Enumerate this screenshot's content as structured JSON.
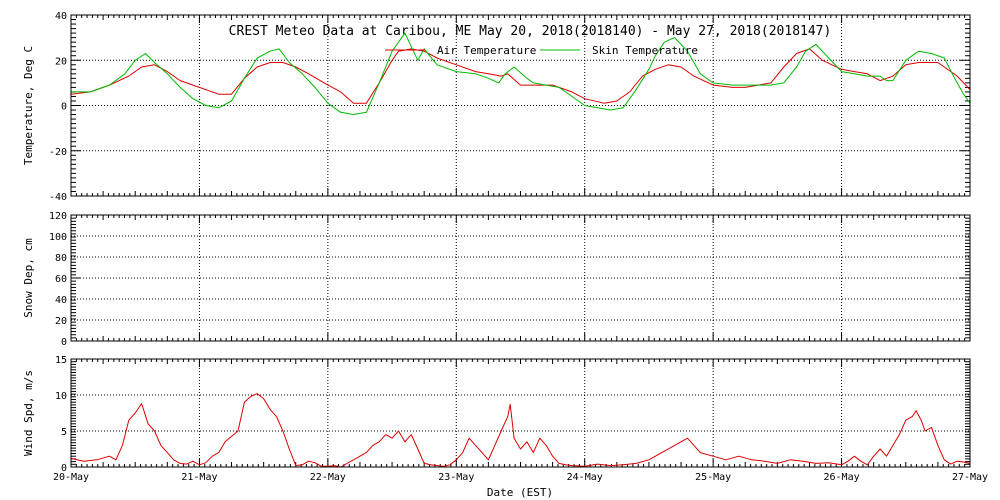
{
  "chart_data": {
    "title": "CREST Meteo Data at Caribou, ME   May 20, 2018(2018140) - May 27, 2018(2018147)",
    "xlabel": "Date (EST)",
    "x_tick_labels": [
      "20-May",
      "21-May",
      "22-May",
      "23-May",
      "24-May",
      "25-May",
      "26-May",
      "27-May"
    ],
    "xlim": [
      0,
      7
    ],
    "grid": true,
    "colors": {
      "air": "#dd0000",
      "skin": "#00bb00",
      "wind": "#dd0000"
    },
    "panels": [
      {
        "id": "temperature",
        "type": "line",
        "ylabel": "Temperature, Deg C",
        "ylim": [
          -40,
          40
        ],
        "y_ticks": [
          -40,
          -20,
          0,
          20,
          40
        ],
        "legend_position": "top-center",
        "series": [
          {
            "name": "Air Temperature",
            "color_key": "air",
            "x": [
              0,
              0.15,
              0.3,
              0.45,
              0.55,
              0.65,
              0.75,
              0.85,
              1.0,
              1.15,
              1.25,
              1.35,
              1.45,
              1.55,
              1.65,
              1.75,
              1.85,
              2.0,
              2.1,
              2.2,
              2.3,
              2.4,
              2.5,
              2.55,
              2.65,
              2.75,
              2.85,
              3.0,
              3.15,
              3.25,
              3.35,
              3.4,
              3.5,
              3.6,
              3.75,
              3.9,
              4.0,
              4.15,
              4.25,
              4.35,
              4.45,
              4.55,
              4.65,
              4.75,
              4.85,
              5.0,
              5.15,
              5.25,
              5.35,
              5.45,
              5.55,
              5.65,
              5.75,
              5.85,
              6.0,
              6.1,
              6.2,
              6.3,
              6.4,
              6.5,
              6.6,
              6.75,
              6.9,
              7.0
            ],
            "y": [
              5,
              6,
              9,
              13,
              17,
              18,
              15,
              11,
              8,
              5,
              5,
              12,
              17,
              19,
              19,
              17,
              14,
              9,
              6,
              1,
              1,
              10,
              20,
              24,
              25,
              24,
              21,
              18,
              15,
              14,
              13,
              14,
              9,
              9,
              9,
              6,
              3,
              1,
              2,
              6,
              13,
              16,
              18,
              17,
              13,
              9,
              8,
              8,
              9,
              10,
              17,
              23,
              25,
              20,
              16,
              15,
              14,
              11,
              13,
              18,
              19,
              19,
              13,
              7
            ]
          },
          {
            "name": "Skin Temperature",
            "color_key": "skin",
            "x": [
              0,
              0.15,
              0.3,
              0.42,
              0.5,
              0.58,
              0.65,
              0.75,
              0.85,
              0.95,
              1.05,
              1.15,
              1.25,
              1.35,
              1.45,
              1.55,
              1.62,
              1.7,
              1.8,
              1.9,
              2.0,
              2.1,
              2.2,
              2.3,
              2.4,
              2.5,
              2.55,
              2.6,
              2.65,
              2.7,
              2.75,
              2.85,
              3.0,
              3.15,
              3.25,
              3.33,
              3.38,
              3.45,
              3.55,
              3.6,
              3.7,
              3.8,
              3.9,
              4.0,
              4.1,
              4.2,
              4.3,
              4.4,
              4.5,
              4.55,
              4.62,
              4.7,
              4.8,
              4.9,
              5.0,
              5.15,
              5.3,
              5.45,
              5.55,
              5.65,
              5.72,
              5.8,
              5.9,
              6.0,
              6.1,
              6.2,
              6.3,
              6.35,
              6.4,
              6.5,
              6.6,
              6.7,
              6.8,
              6.88,
              6.95,
              7.0
            ],
            "y": [
              6,
              6,
              9,
              14,
              20,
              23,
              19,
              14,
              8,
              3,
              0,
              -1,
              2,
              12,
              21,
              24,
              25,
              19,
              14,
              8,
              1,
              -3,
              -4,
              -3,
              10,
              24,
              28,
              32,
              26,
              20,
              25,
              18,
              15,
              14,
              12,
              10,
              14,
              17,
              12,
              10,
              9,
              8,
              4,
              0,
              -1,
              -2,
              -1,
              7,
              16,
              22,
              28,
              30,
              24,
              14,
              10,
              9,
              9,
              9,
              10,
              17,
              24,
              27,
              21,
              15,
              14,
              13,
              13,
              11,
              11,
              20,
              24,
              23,
              21,
              12,
              5,
              1
            ]
          }
        ]
      },
      {
        "id": "snow",
        "type": "line",
        "ylabel": "Snow Dep, cm",
        "ylim": [
          0,
          120
        ],
        "y_ticks": [
          0,
          20,
          40,
          60,
          80,
          100,
          120
        ],
        "series": []
      },
      {
        "id": "wind",
        "type": "line",
        "ylabel": "Wind Spd, m/s",
        "ylim": [
          0,
          15
        ],
        "y_ticks": [
          0,
          5,
          10,
          15
        ],
        "series": [
          {
            "color_key": "wind",
            "x": [
              0,
              0.1,
              0.2,
              0.3,
              0.35,
              0.4,
              0.45,
              0.5,
              0.55,
              0.6,
              0.65,
              0.7,
              0.75,
              0.8,
              0.85,
              0.9,
              0.95,
              1.0,
              1.05,
              1.1,
              1.15,
              1.2,
              1.3,
              1.35,
              1.4,
              1.45,
              1.5,
              1.55,
              1.6,
              1.65,
              1.7,
              1.75,
              1.8,
              1.85,
              1.9,
              1.95,
              2.0,
              2.05,
              2.1,
              2.2,
              2.3,
              2.35,
              2.4,
              2.45,
              2.5,
              2.55,
              2.6,
              2.65,
              2.7,
              2.75,
              2.8,
              2.85,
              2.9,
              2.95,
              3.0,
              3.05,
              3.1,
              3.15,
              3.2,
              3.25,
              3.3,
              3.35,
              3.4,
              3.42,
              3.45,
              3.5,
              3.55,
              3.6,
              3.65,
              3.7,
              3.75,
              3.8,
              3.85,
              3.9,
              4.0,
              4.1,
              4.2,
              4.3,
              4.4,
              4.5,
              4.6,
              4.7,
              4.75,
              4.8,
              4.85,
              4.9,
              5.0,
              5.1,
              5.2,
              5.3,
              5.4,
              5.5,
              5.6,
              5.7,
              5.8,
              5.9,
              6.0,
              6.05,
              6.1,
              6.15,
              6.2,
              6.25,
              6.3,
              6.35,
              6.4,
              6.45,
              6.5,
              6.55,
              6.58,
              6.62,
              6.65,
              6.7,
              6.75,
              6.8,
              6.85,
              6.9,
              6.95,
              7.0
            ],
            "y": [
              1.2,
              0.8,
              1.0,
              1.5,
              1.0,
              3.0,
              6.5,
              7.5,
              8.8,
              6.0,
              5.0,
              3.0,
              2.0,
              1.0,
              0.5,
              0.4,
              0.8,
              0.3,
              0.6,
              1.5,
              2.0,
              3.5,
              5.0,
              9.0,
              9.8,
              10.2,
              9.5,
              8.0,
              7.0,
              5.0,
              2.5,
              0.2,
              0.3,
              0.8,
              0.6,
              0.1,
              0.1,
              0.2,
              0.0,
              1.0,
              2.0,
              3.0,
              3.5,
              4.5,
              4.0,
              5.0,
              3.5,
              4.5,
              2.5,
              0.5,
              0.3,
              0.2,
              0.1,
              0.3,
              1.0,
              2.0,
              4.0,
              3.0,
              2.0,
              1.0,
              3.0,
              5.0,
              7.0,
              8.7,
              4.0,
              2.5,
              3.5,
              2.0,
              4.0,
              3.0,
              1.5,
              0.5,
              0.3,
              0.2,
              0.1,
              0.4,
              0.2,
              0.3,
              0.5,
              1.0,
              2.0,
              3.0,
              3.5,
              4.0,
              3.0,
              2.0,
              1.5,
              1.0,
              1.5,
              1.0,
              0.8,
              0.5,
              1.0,
              0.8,
              0.5,
              0.6,
              0.3,
              0.8,
              1.5,
              0.8,
              0.3,
              1.5,
              2.5,
              1.5,
              3.0,
              4.5,
              6.5,
              7.0,
              7.8,
              6.5,
              5.0,
              5.5,
              3.0,
              1.0,
              0.4,
              0.8,
              0.7,
              0.5
            ]
          }
        ]
      }
    ]
  }
}
